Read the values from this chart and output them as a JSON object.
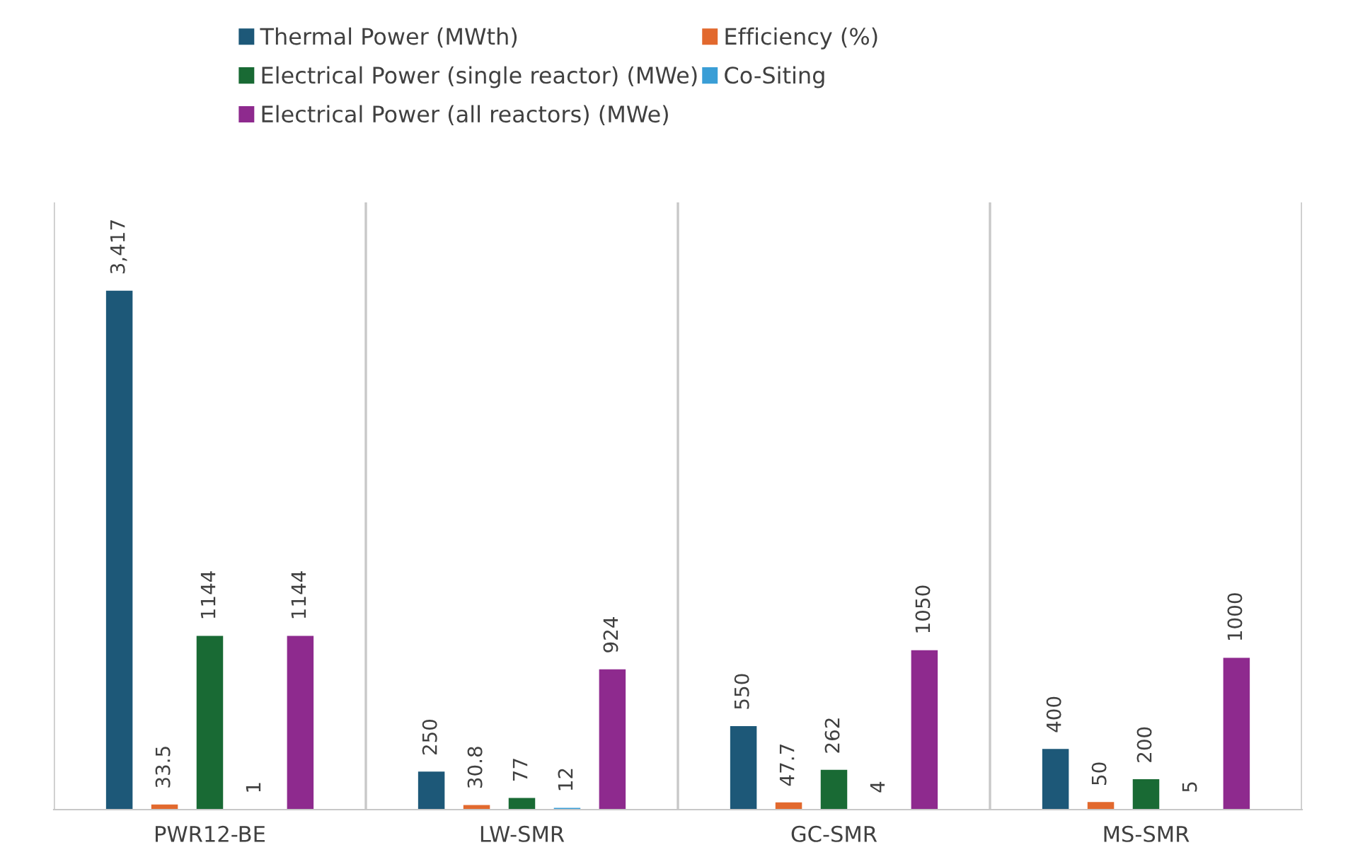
{
  "chart_data": {
    "type": "bar",
    "categories": [
      "PWR12-BE",
      "LW-SMR",
      "GC-SMR",
      "MS-SMR"
    ],
    "series": [
      {
        "name": "Thermal Power (MWth)",
        "color": "#1d5878",
        "values": [
          3417,
          250,
          550,
          400
        ],
        "value_labels": [
          "3,417",
          "250",
          "550",
          "400"
        ]
      },
      {
        "name": "Efficiency (%)",
        "color": "#e2692e",
        "values": [
          33.5,
          30.8,
          47.7,
          50
        ],
        "value_labels": [
          "33.5",
          "30.8",
          "47.7",
          "50"
        ]
      },
      {
        "name": "Electrical Power (single reactor) (MWe)",
        "color": "#196a34",
        "values": [
          1144,
          77,
          262,
          200
        ],
        "value_labels": [
          "1144",
          "77",
          "262",
          "200"
        ]
      },
      {
        "name": "Co-Siting",
        "color": "#3a9ed6",
        "values": [
          1,
          12,
          4,
          5
        ],
        "value_labels": [
          "1",
          "12",
          "4",
          "5"
        ]
      },
      {
        "name": "Electrical Power (all reactors) (MWe)",
        "color": "#8e2a8e",
        "values": [
          1144,
          924,
          1050,
          1000
        ],
        "value_labels": [
          "1144",
          "924",
          "1050",
          "1000"
        ]
      }
    ],
    "grid": "x",
    "legend": "top"
  }
}
